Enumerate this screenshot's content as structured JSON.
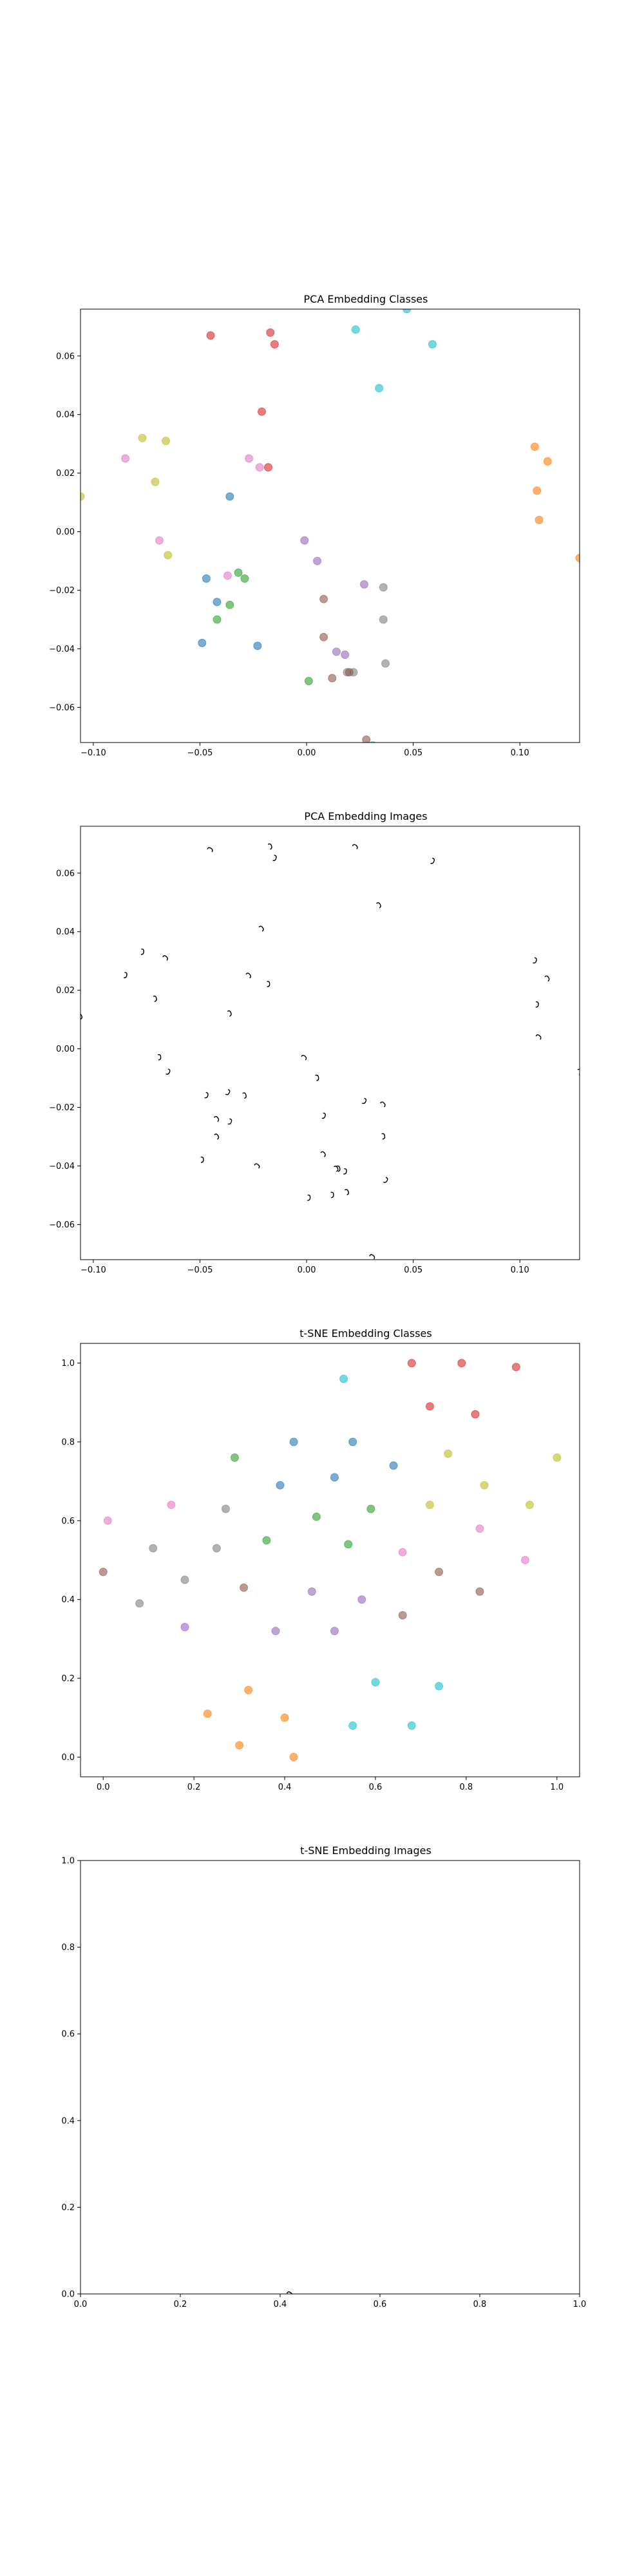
{
  "figure": {
    "background": "#ffffff",
    "palette": [
      "#1f77b4",
      "#ff7f0e",
      "#2ca02c",
      "#d62728",
      "#9467bd",
      "#8c564b",
      "#e377c2",
      "#7f7f7f",
      "#bcbd22",
      "#17becf"
    ]
  },
  "chart_data": [
    {
      "id": "pca-classes",
      "type": "scatter",
      "title": "PCA Embedding Classes",
      "xlim": [
        -0.106,
        0.128
      ],
      "ylim": [
        -0.072,
        0.076
      ],
      "xticks": [
        -0.1,
        -0.05,
        0.0,
        0.05,
        0.1
      ],
      "xtick_labels": [
        "−0.10",
        "−0.05",
        "0.00",
        "0.05",
        "0.10"
      ],
      "yticks": [
        -0.06,
        -0.04,
        -0.02,
        0.0,
        0.02,
        0.04,
        0.06
      ],
      "ytick_labels": [
        "−0.06",
        "−0.04",
        "−0.02",
        "0.00",
        "0.02",
        "0.04",
        "0.06"
      ],
      "grid": false,
      "marker_alpha": 0.6,
      "points": [
        {
          "x": -0.045,
          "y": 0.067,
          "c": 3
        },
        {
          "x": -0.017,
          "y": 0.068,
          "c": 3
        },
        {
          "x": -0.015,
          "y": 0.064,
          "c": 3
        },
        {
          "x": -0.021,
          "y": 0.041,
          "c": 3
        },
        {
          "x": -0.018,
          "y": 0.022,
          "c": 3
        },
        {
          "x": 0.023,
          "y": 0.069,
          "c": 9
        },
        {
          "x": 0.047,
          "y": 0.076,
          "c": 9
        },
        {
          "x": 0.059,
          "y": 0.064,
          "c": 9
        },
        {
          "x": 0.034,
          "y": 0.049,
          "c": 9
        },
        {
          "x": 0.031,
          "y": -0.073,
          "c": 9
        },
        {
          "x": -0.077,
          "y": 0.032,
          "c": 8
        },
        {
          "x": -0.066,
          "y": 0.031,
          "c": 8
        },
        {
          "x": -0.071,
          "y": 0.017,
          "c": 8
        },
        {
          "x": -0.065,
          "y": -0.008,
          "c": 8
        },
        {
          "x": -0.106,
          "y": 0.012,
          "c": 8
        },
        {
          "x": -0.085,
          "y": 0.025,
          "c": 6
        },
        {
          "x": -0.027,
          "y": 0.025,
          "c": 6
        },
        {
          "x": -0.022,
          "y": 0.022,
          "c": 6
        },
        {
          "x": -0.069,
          "y": -0.003,
          "c": 6
        },
        {
          "x": -0.037,
          "y": -0.015,
          "c": 6
        },
        {
          "x": -0.036,
          "y": 0.012,
          "c": 0
        },
        {
          "x": -0.047,
          "y": -0.016,
          "c": 0
        },
        {
          "x": -0.042,
          "y": -0.024,
          "c": 0
        },
        {
          "x": -0.049,
          "y": -0.038,
          "c": 0
        },
        {
          "x": -0.023,
          "y": -0.039,
          "c": 0
        },
        {
          "x": -0.032,
          "y": -0.014,
          "c": 2
        },
        {
          "x": -0.029,
          "y": -0.016,
          "c": 2
        },
        {
          "x": -0.036,
          "y": -0.025,
          "c": 2
        },
        {
          "x": -0.042,
          "y": -0.03,
          "c": 2
        },
        {
          "x": 0.001,
          "y": -0.051,
          "c": 2
        },
        {
          "x": -0.001,
          "y": -0.003,
          "c": 4
        },
        {
          "x": 0.005,
          "y": -0.01,
          "c": 4
        },
        {
          "x": 0.027,
          "y": -0.018,
          "c": 4
        },
        {
          "x": 0.014,
          "y": -0.041,
          "c": 4
        },
        {
          "x": 0.018,
          "y": -0.042,
          "c": 4
        },
        {
          "x": 0.036,
          "y": -0.019,
          "c": 7
        },
        {
          "x": 0.036,
          "y": -0.03,
          "c": 7
        },
        {
          "x": 0.037,
          "y": -0.045,
          "c": 7
        },
        {
          "x": 0.019,
          "y": -0.048,
          "c": 7
        },
        {
          "x": 0.022,
          "y": -0.048,
          "c": 7
        },
        {
          "x": 0.008,
          "y": -0.023,
          "c": 5
        },
        {
          "x": 0.008,
          "y": -0.036,
          "c": 5
        },
        {
          "x": 0.012,
          "y": -0.05,
          "c": 5
        },
        {
          "x": 0.028,
          "y": -0.071,
          "c": 5
        },
        {
          "x": 0.02,
          "y": -0.048,
          "c": 5
        },
        {
          "x": 0.107,
          "y": 0.029,
          "c": 1
        },
        {
          "x": 0.113,
          "y": 0.024,
          "c": 1
        },
        {
          "x": 0.108,
          "y": 0.014,
          "c": 1
        },
        {
          "x": 0.109,
          "y": 0.004,
          "c": 1
        },
        {
          "x": 0.128,
          "y": -0.009,
          "c": 1
        }
      ]
    },
    {
      "id": "pca-images",
      "type": "scatter",
      "title": "PCA Embedding Images",
      "xlim": [
        -0.106,
        0.128
      ],
      "ylim": [
        -0.072,
        0.076
      ],
      "xticks": [
        -0.1,
        -0.05,
        0.0,
        0.05,
        0.1
      ],
      "xtick_labels": [
        "−0.10",
        "−0.05",
        "0.00",
        "0.05",
        "0.10"
      ],
      "yticks": [
        -0.06,
        -0.04,
        -0.02,
        0.0,
        0.02,
        0.04,
        0.06
      ],
      "ytick_labels": [
        "−0.06",
        "−0.04",
        "−0.02",
        "0.00",
        "0.02",
        "0.04",
        "0.06"
      ],
      "grid": false,
      "marker": "glyph",
      "points": [
        {
          "x": -0.045,
          "y": 0.068
        },
        {
          "x": -0.017,
          "y": 0.069
        },
        {
          "x": -0.015,
          "y": 0.065
        },
        {
          "x": -0.021,
          "y": 0.041
        },
        {
          "x": -0.018,
          "y": 0.022
        },
        {
          "x": 0.023,
          "y": 0.069
        },
        {
          "x": 0.047,
          "y": 0.077
        },
        {
          "x": 0.059,
          "y": 0.064
        },
        {
          "x": 0.034,
          "y": 0.049
        },
        {
          "x": -0.077,
          "y": 0.033
        },
        {
          "x": -0.066,
          "y": 0.031
        },
        {
          "x": -0.071,
          "y": 0.017
        },
        {
          "x": -0.065,
          "y": -0.008
        },
        {
          "x": -0.106,
          "y": 0.011
        },
        {
          "x": -0.085,
          "y": 0.025
        },
        {
          "x": -0.027,
          "y": 0.025
        },
        {
          "x": -0.069,
          "y": -0.003
        },
        {
          "x": -0.037,
          "y": -0.015
        },
        {
          "x": -0.036,
          "y": 0.012
        },
        {
          "x": -0.047,
          "y": -0.016
        },
        {
          "x": -0.042,
          "y": -0.024
        },
        {
          "x": -0.049,
          "y": -0.038
        },
        {
          "x": -0.023,
          "y": -0.04
        },
        {
          "x": -0.029,
          "y": -0.016
        },
        {
          "x": -0.036,
          "y": -0.025
        },
        {
          "x": -0.042,
          "y": -0.03
        },
        {
          "x": 0.001,
          "y": -0.051
        },
        {
          "x": -0.001,
          "y": -0.003
        },
        {
          "x": 0.005,
          "y": -0.01
        },
        {
          "x": 0.027,
          "y": -0.018
        },
        {
          "x": 0.014,
          "y": -0.041
        },
        {
          "x": 0.018,
          "y": -0.042
        },
        {
          "x": 0.036,
          "y": -0.019
        },
        {
          "x": 0.036,
          "y": -0.03
        },
        {
          "x": 0.037,
          "y": -0.045
        },
        {
          "x": 0.019,
          "y": -0.049
        },
        {
          "x": 0.008,
          "y": -0.023
        },
        {
          "x": 0.008,
          "y": -0.036
        },
        {
          "x": 0.012,
          "y": -0.05
        },
        {
          "x": 0.031,
          "y": -0.071
        },
        {
          "x": 0.015,
          "y": -0.041
        },
        {
          "x": 0.107,
          "y": 0.03
        },
        {
          "x": 0.113,
          "y": 0.024
        },
        {
          "x": 0.108,
          "y": 0.015
        },
        {
          "x": 0.109,
          "y": 0.004
        },
        {
          "x": 0.128,
          "y": -0.008
        }
      ]
    },
    {
      "id": "tsne-classes",
      "type": "scatter",
      "title": "t-SNE Embedding Classes",
      "xlim": [
        -0.05,
        1.05
      ],
      "ylim": [
        -0.05,
        1.05
      ],
      "xticks": [
        0.0,
        0.2,
        0.4,
        0.6,
        0.8,
        1.0
      ],
      "xtick_labels": [
        "0.0",
        "0.2",
        "0.4",
        "0.6",
        "0.8",
        "1.0"
      ],
      "yticks": [
        0.0,
        0.2,
        0.4,
        0.6,
        0.8,
        1.0
      ],
      "ytick_labels": [
        "0.0",
        "0.2",
        "0.4",
        "0.6",
        "0.8",
        "1.0"
      ],
      "grid": false,
      "marker_alpha": 0.6,
      "points": [
        {
          "x": 0.68,
          "y": 1.0,
          "c": 3
        },
        {
          "x": 0.79,
          "y": 1.0,
          "c": 3
        },
        {
          "x": 0.91,
          "y": 0.99,
          "c": 3
        },
        {
          "x": 0.72,
          "y": 0.89,
          "c": 3
        },
        {
          "x": 0.82,
          "y": 0.87,
          "c": 3
        },
        {
          "x": 0.53,
          "y": 0.96,
          "c": 9
        },
        {
          "x": 0.6,
          "y": 0.19,
          "c": 9
        },
        {
          "x": 0.74,
          "y": 0.18,
          "c": 9
        },
        {
          "x": 0.55,
          "y": 0.08,
          "c": 9
        },
        {
          "x": 0.68,
          "y": 0.08,
          "c": 9
        },
        {
          "x": 0.76,
          "y": 0.77,
          "c": 8
        },
        {
          "x": 1.0,
          "y": 0.76,
          "c": 8
        },
        {
          "x": 0.84,
          "y": 0.69,
          "c": 8
        },
        {
          "x": 0.72,
          "y": 0.64,
          "c": 8
        },
        {
          "x": 0.94,
          "y": 0.64,
          "c": 8
        },
        {
          "x": 0.01,
          "y": 0.6,
          "c": 6
        },
        {
          "x": 0.15,
          "y": 0.64,
          "c": 6
        },
        {
          "x": 0.66,
          "y": 0.52,
          "c": 6
        },
        {
          "x": 0.83,
          "y": 0.58,
          "c": 6
        },
        {
          "x": 0.93,
          "y": 0.5,
          "c": 6
        },
        {
          "x": 0.42,
          "y": 0.8,
          "c": 0
        },
        {
          "x": 0.55,
          "y": 0.8,
          "c": 0
        },
        {
          "x": 0.64,
          "y": 0.74,
          "c": 0
        },
        {
          "x": 0.39,
          "y": 0.69,
          "c": 0
        },
        {
          "x": 0.51,
          "y": 0.71,
          "c": 0
        },
        {
          "x": 0.29,
          "y": 0.76,
          "c": 2
        },
        {
          "x": 0.59,
          "y": 0.63,
          "c": 2
        },
        {
          "x": 0.47,
          "y": 0.61,
          "c": 2
        },
        {
          "x": 0.36,
          "y": 0.55,
          "c": 2
        },
        {
          "x": 0.54,
          "y": 0.54,
          "c": 2
        },
        {
          "x": 0.46,
          "y": 0.42,
          "c": 4
        },
        {
          "x": 0.57,
          "y": 0.4,
          "c": 4
        },
        {
          "x": 0.38,
          "y": 0.32,
          "c": 4
        },
        {
          "x": 0.51,
          "y": 0.32,
          "c": 4
        },
        {
          "x": 0.18,
          "y": 0.33,
          "c": 4
        },
        {
          "x": 0.27,
          "y": 0.63,
          "c": 7
        },
        {
          "x": 0.11,
          "y": 0.53,
          "c": 7
        },
        {
          "x": 0.25,
          "y": 0.53,
          "c": 7
        },
        {
          "x": 0.18,
          "y": 0.45,
          "c": 7
        },
        {
          "x": 0.08,
          "y": 0.39,
          "c": 7
        },
        {
          "x": 0.0,
          "y": 0.47,
          "c": 5
        },
        {
          "x": 0.31,
          "y": 0.43,
          "c": 5
        },
        {
          "x": 0.66,
          "y": 0.36,
          "c": 5
        },
        {
          "x": 0.74,
          "y": 0.47,
          "c": 5
        },
        {
          "x": 0.83,
          "y": 0.42,
          "c": 5
        },
        {
          "x": 0.23,
          "y": 0.11,
          "c": 1
        },
        {
          "x": 0.32,
          "y": 0.17,
          "c": 1
        },
        {
          "x": 0.4,
          "y": 0.1,
          "c": 1
        },
        {
          "x": 0.3,
          "y": 0.03,
          "c": 1
        },
        {
          "x": 0.42,
          "y": 0.0,
          "c": 1
        }
      ]
    },
    {
      "id": "tsne-images",
      "type": "scatter",
      "title": "t-SNE Embedding Images",
      "xlim": [
        0.0,
        1.0
      ],
      "ylim": [
        0.0,
        1.0
      ],
      "xticks": [
        0.0,
        0.2,
        0.4,
        0.6,
        0.8,
        1.0
      ],
      "xtick_labels": [
        "0.0",
        "0.2",
        "0.4",
        "0.6",
        "0.8",
        "1.0"
      ],
      "yticks": [
        0.0,
        0.2,
        0.4,
        0.6,
        0.8,
        1.0
      ],
      "ytick_labels": [
        "0.0",
        "0.2",
        "0.4",
        "0.6",
        "0.8",
        "1.0"
      ],
      "grid": false,
      "marker": "glyph",
      "points": [
        {
          "x": 0.42,
          "y": 0.0
        }
      ]
    }
  ]
}
